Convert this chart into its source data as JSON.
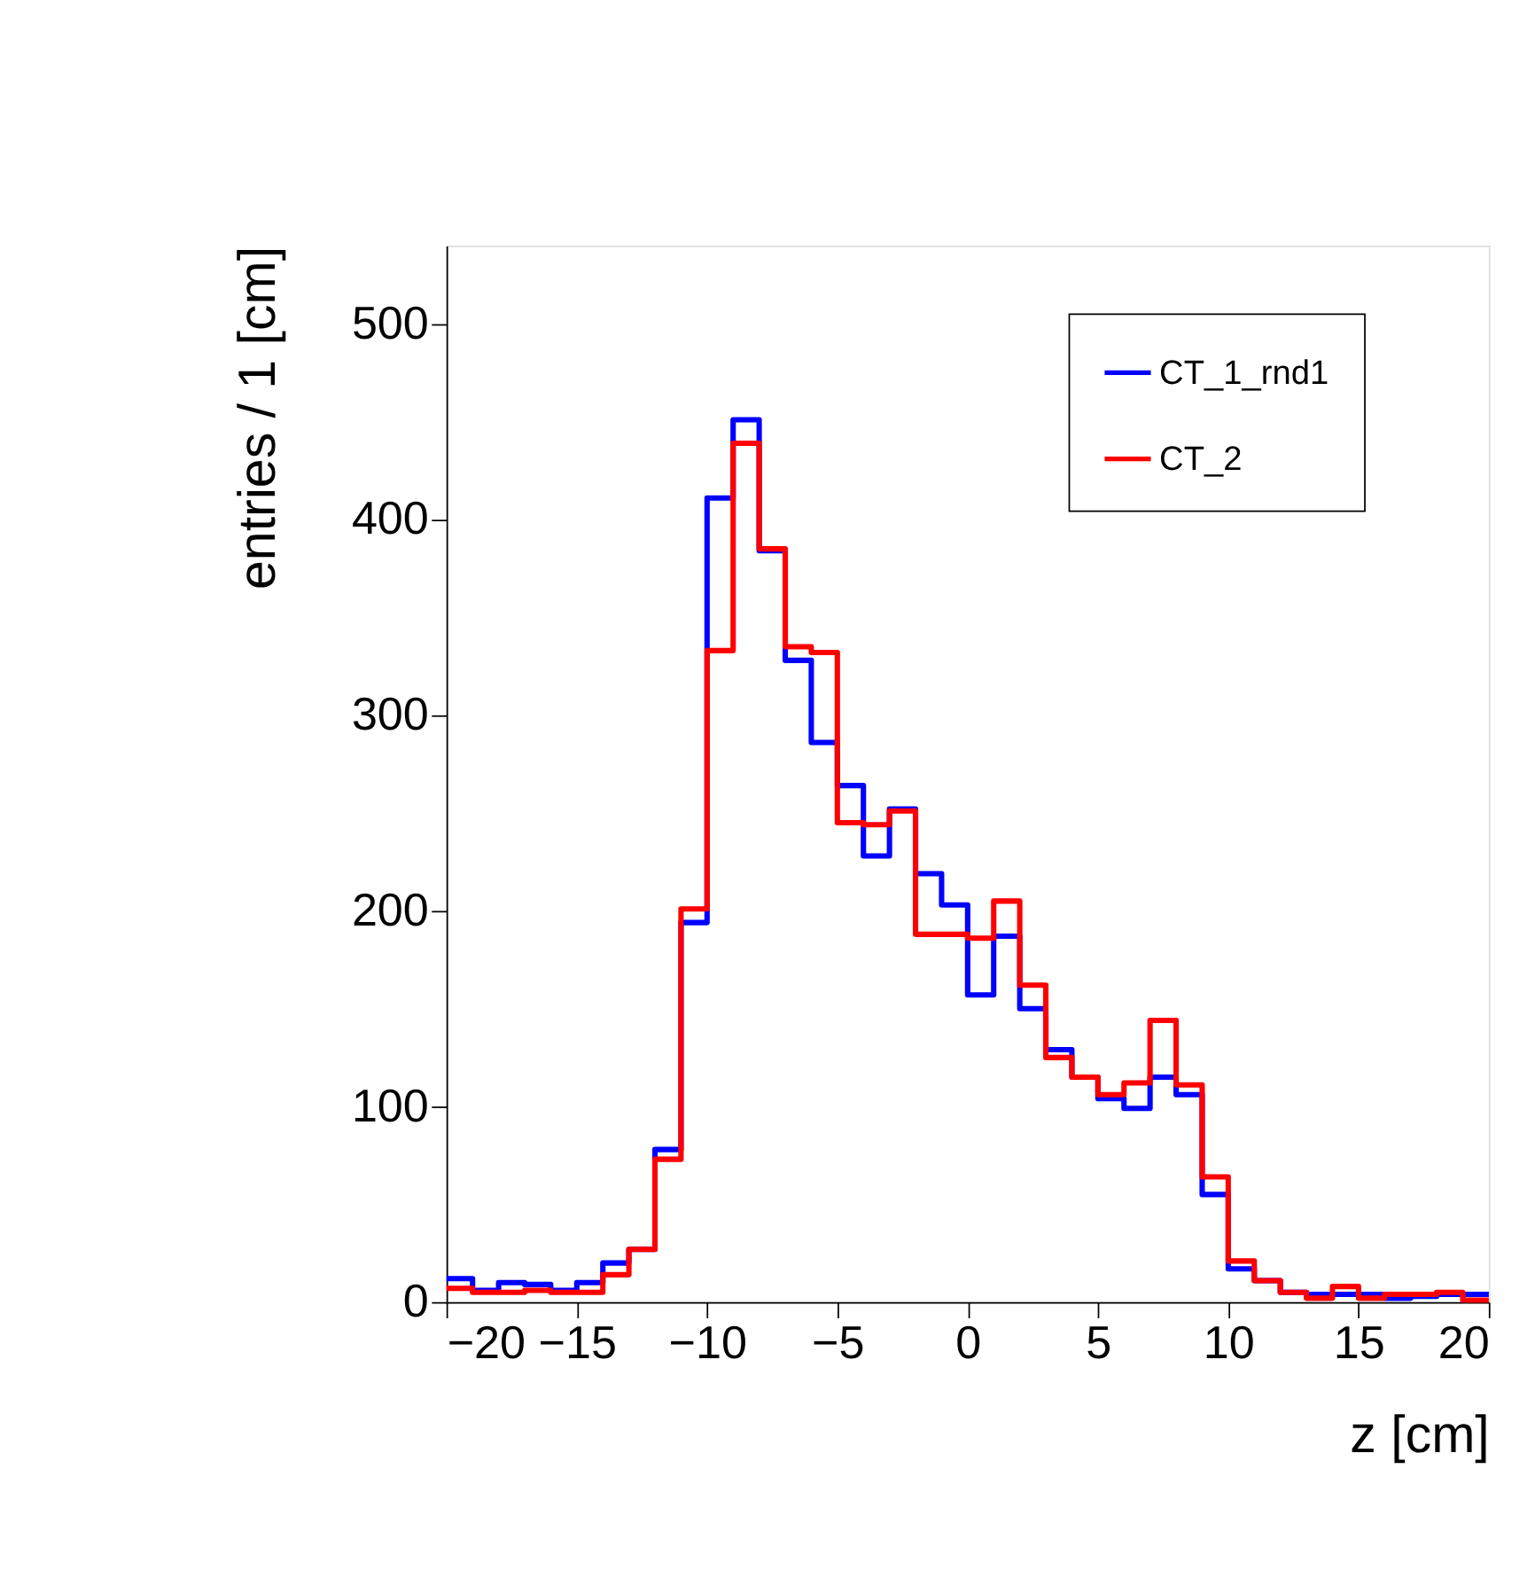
{
  "chart_data": {
    "type": "histogram",
    "xlabel": "z [cm]",
    "ylabel": "entries / 1 [cm]",
    "bins": [
      -20,
      -19,
      -18,
      -17,
      -16,
      -15,
      -14,
      -13,
      -12,
      -11,
      -10,
      -9,
      -8,
      -7,
      -6,
      -5,
      -4,
      -3,
      -2,
      -1,
      0,
      1,
      2,
      3,
      4,
      5,
      6,
      7,
      8,
      9,
      10,
      11,
      12,
      13,
      14,
      15,
      16,
      17,
      18,
      19,
      20
    ],
    "series": [
      {
        "name": "CT_1_rnd1",
        "color": "#0000ff",
        "values": [
          12,
          6,
          10,
          9,
          6,
          10,
          20,
          27,
          78,
          194,
          411,
          451,
          384,
          328,
          286,
          264,
          228,
          252,
          219,
          203,
          157,
          187,
          150,
          129,
          115,
          104,
          99,
          115,
          106,
          55,
          17,
          11,
          5,
          4,
          4,
          4,
          2,
          3,
          4,
          4
        ]
      },
      {
        "name": "CT_2",
        "color": "#ff0000",
        "values": [
          7,
          5,
          5,
          6,
          5,
          5,
          14,
          27,
          73,
          201,
          333,
          439,
          385,
          335,
          332,
          245,
          244,
          251,
          188,
          188,
          186,
          205,
          162,
          125,
          115,
          106,
          112,
          144,
          111,
          64,
          21,
          11,
          5,
          2,
          8,
          2,
          4,
          4,
          5,
          1
        ]
      }
    ],
    "xlim": [
      -20,
      20
    ],
    "xticks": [
      -20,
      -15,
      -10,
      -5,
      0,
      5,
      10,
      15,
      20
    ],
    "ylim": [
      0,
      540
    ],
    "yticks": [
      0,
      100,
      200,
      300,
      400,
      500
    ],
    "grid": false,
    "legend": "top right"
  }
}
